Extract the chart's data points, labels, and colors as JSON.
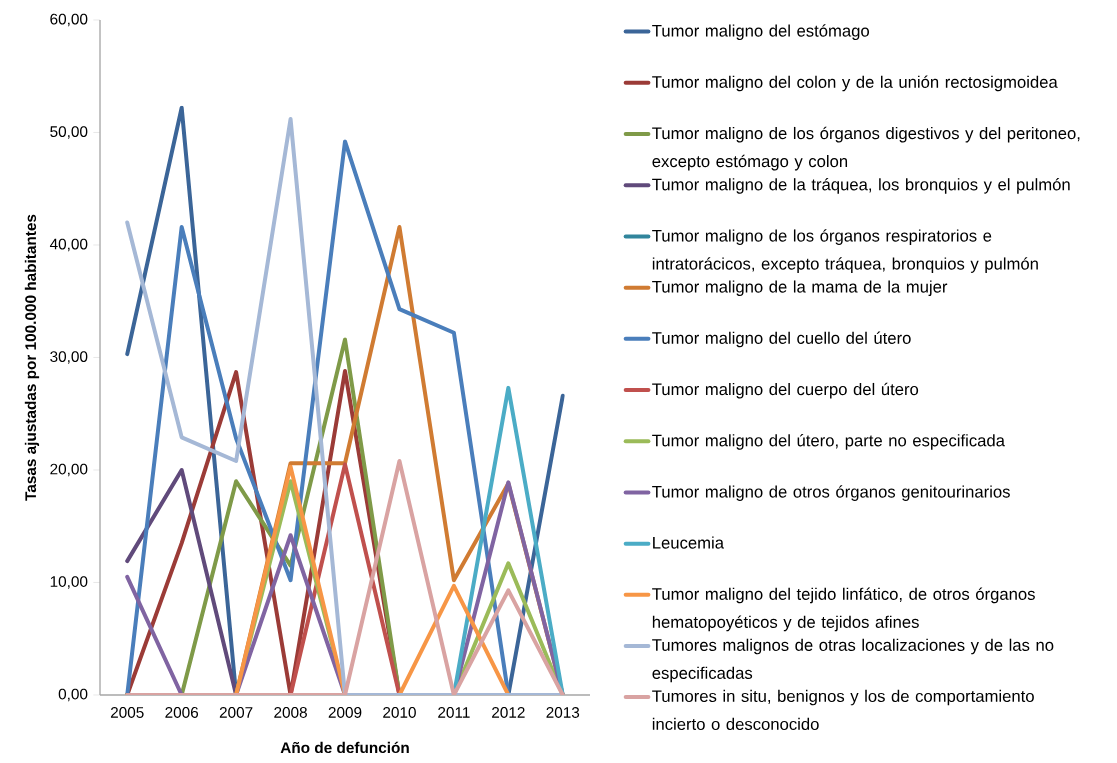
{
  "chart_data": {
    "type": "line",
    "xlabel": "Año de defunción",
    "ylabel": "Tasas ajustadas por 100.000 habitantes",
    "categories": [
      "2005",
      "2006",
      "2007",
      "2008",
      "2009",
      "2010",
      "2011",
      "2012",
      "2013"
    ],
    "ylim": [
      0,
      60
    ],
    "yticks": [
      {
        "value": 0,
        "label": "0,00"
      },
      {
        "value": 10,
        "label": "10,00"
      },
      {
        "value": 20,
        "label": "20,00"
      },
      {
        "value": 30,
        "label": "30,00"
      },
      {
        "value": 40,
        "label": "40,00"
      },
      {
        "value": 50,
        "label": "50,00"
      },
      {
        "value": 60,
        "label": "60,00"
      }
    ],
    "grid": false,
    "legend": "right",
    "marker": "none",
    "line_style": "solid",
    "series": [
      {
        "name": "Tumor maligno del estómago",
        "color": "#3b6598",
        "values": [
          30.3,
          52.2,
          0,
          0,
          0,
          0,
          0,
          0,
          26.6
        ]
      },
      {
        "name": "Tumor maligno del colon y de la unión rectosigmoidea",
        "color": "#9b3b37",
        "values": [
          0,
          13.5,
          28.7,
          0,
          28.8,
          0,
          0,
          0,
          0
        ]
      },
      {
        "name": "Tumor maligno de los órganos digestivos y del peritoneo, excepto estómago y colon",
        "color": "#7f9a48",
        "values": [
          0,
          0,
          19.0,
          11.5,
          31.6,
          0,
          0,
          0,
          0
        ]
      },
      {
        "name": "Tumor maligno de la tráquea, los bronquios y el pulmón",
        "color": "#604a7b",
        "values": [
          11.9,
          20.0,
          0,
          0,
          0,
          0,
          0,
          0,
          0
        ]
      },
      {
        "name": "Tumor maligno de los órganos respiratorios e intratorácicos, excepto tráquea, bronquios y pulmón",
        "color": "#31859c",
        "values": [
          null,
          null,
          null,
          null,
          null,
          null,
          null,
          null,
          null
        ]
      },
      {
        "name": "Tumor maligno de la mama de la mujer",
        "color": "#d07b32",
        "values": [
          0,
          0,
          0,
          20.6,
          20.6,
          41.6,
          10.2,
          18.8,
          0
        ]
      },
      {
        "name": "Tumor maligno del cuello del útero",
        "color": "#4a7ebb",
        "values": [
          0,
          41.6,
          22.8,
          10.2,
          49.2,
          34.3,
          32.2,
          0,
          0
        ]
      },
      {
        "name": "Tumor maligno del cuerpo del útero",
        "color": "#c0504d",
        "values": [
          0,
          0,
          0,
          0,
          20.5,
          0,
          0,
          0,
          0
        ]
      },
      {
        "name": "Tumor maligno del útero, parte no especificada",
        "color": "#9bbb59",
        "values": [
          0,
          0,
          0,
          19.0,
          0,
          0,
          0,
          11.7,
          0
        ]
      },
      {
        "name": "Tumor maligno de otros órganos genitourinarios",
        "color": "#8064a2",
        "values": [
          10.5,
          0,
          0,
          14.2,
          0,
          0,
          0,
          18.9,
          0
        ]
      },
      {
        "name": "Leucemia",
        "color": "#4bacc6",
        "values": [
          0,
          0,
          0,
          0,
          0,
          0,
          0,
          27.3,
          0
        ]
      },
      {
        "name": "Tumor maligno del tejido linfático, de otros órganos hematopoyéticos y de tejidos afines",
        "color": "#f79646",
        "values": [
          0,
          0,
          0,
          20.3,
          0,
          0,
          9.7,
          0,
          0
        ]
      },
      {
        "name": "Tumores malignos de otras localizaciones y de las no especificadas",
        "color": "#a5b8d6",
        "values": [
          42.0,
          22.9,
          20.8,
          51.2,
          0,
          0,
          0,
          0,
          0
        ]
      },
      {
        "name": "Tumores in situ, benignos y los de comportamiento incierto o desconocido",
        "color": "#d9a3a2",
        "values": [
          0,
          0,
          0,
          0,
          0,
          20.8,
          0,
          9.3,
          0
        ]
      }
    ]
  }
}
